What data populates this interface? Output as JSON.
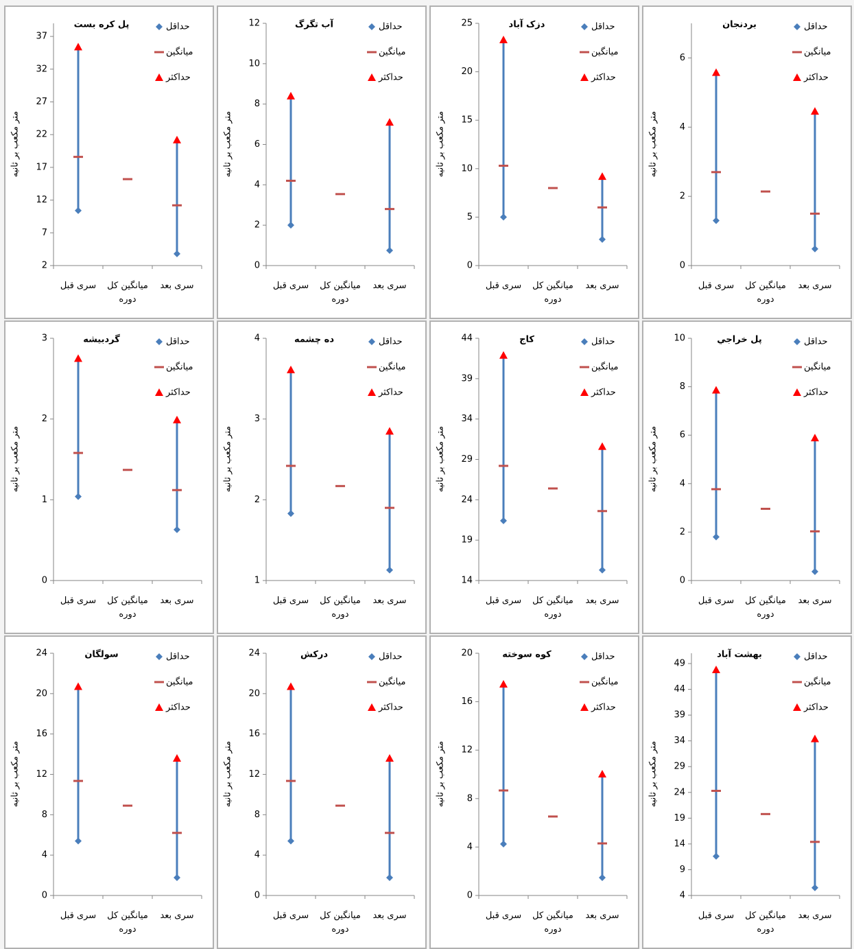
{
  "chart_data": [
    {
      "type": "high-low",
      "title": "پل کره بست",
      "ylabel": "متر مکعب بر ثانیه",
      "categories": [
        "سری قبل",
        "میانگین کل دوره",
        "سری بعد"
      ],
      "ylim": [
        2,
        39
      ],
      "yticks": [
        2,
        7,
        12,
        17,
        22,
        27,
        32,
        37
      ],
      "series": [
        {
          "name": "حداقل",
          "color": "#4a7ebb",
          "marker": "diamond",
          "values": [
            10.4,
            null,
            3.8
          ]
        },
        {
          "name": "میانگین",
          "color": "#c0504d",
          "marker": "dash",
          "values": [
            18.6,
            15.2,
            11.2
          ]
        },
        {
          "name": "حداکثر",
          "color": "#ff0000",
          "marker": "triangle",
          "values": [
            35.4,
            null,
            21.2
          ]
        }
      ]
    },
    {
      "type": "high-low",
      "title": "آب تگرگ",
      "ylabel": "متر مکعب بر ثانیه",
      "categories": [
        "سری قبل",
        "میانگین کل دوره",
        "سری بعد"
      ],
      "ylim": [
        0,
        12
      ],
      "yticks": [
        0,
        2,
        4,
        6,
        8,
        10,
        12
      ],
      "series": [
        {
          "name": "حداقل",
          "color": "#4a7ebb",
          "marker": "diamond",
          "values": [
            2.0,
            null,
            0.75
          ]
        },
        {
          "name": "میانگین",
          "color": "#c0504d",
          "marker": "dash",
          "values": [
            4.2,
            3.54,
            2.8
          ]
        },
        {
          "name": "حداکثر",
          "color": "#ff0000",
          "marker": "triangle",
          "values": [
            8.4,
            null,
            7.1
          ]
        }
      ]
    },
    {
      "type": "high-low",
      "title": "دزک آباد",
      "ylabel": "متر مکعب بر ثانیه",
      "categories": [
        "سری قبل",
        "میانگین کل دوره",
        "سری بعد"
      ],
      "ylim": [
        0,
        25
      ],
      "yticks": [
        0,
        5,
        10,
        15,
        20,
        25
      ],
      "series": [
        {
          "name": "حداقل",
          "color": "#4a7ebb",
          "marker": "diamond",
          "values": [
            5.0,
            null,
            2.7
          ]
        },
        {
          "name": "میانگین",
          "color": "#c0504d",
          "marker": "dash",
          "values": [
            10.3,
            8.0,
            6.0
          ]
        },
        {
          "name": "حداکثر",
          "color": "#ff0000",
          "marker": "triangle",
          "values": [
            23.3,
            null,
            9.2
          ]
        }
      ]
    },
    {
      "type": "high-low",
      "title": "بردنجان",
      "ylabel": "متر مکعب بر ثانیه",
      "categories": [
        "سری قبل",
        "میانگین کل دوره",
        "سری بعد"
      ],
      "ylim": [
        0,
        7
      ],
      "yticks": [
        0,
        2,
        4,
        6
      ],
      "series": [
        {
          "name": "حداقل",
          "color": "#4a7ebb",
          "marker": "diamond",
          "values": [
            1.3,
            null,
            0.48
          ]
        },
        {
          "name": "میانگین",
          "color": "#c0504d",
          "marker": "dash",
          "values": [
            2.7,
            2.14,
            1.5
          ]
        },
        {
          "name": "حداکثر",
          "color": "#ff0000",
          "marker": "triangle",
          "values": [
            5.58,
            null,
            4.46
          ]
        }
      ]
    },
    {
      "type": "high-low",
      "title": "گردبیشه",
      "ylabel": "متر مکعب بر ثانیه",
      "categories": [
        "سری قبل",
        "میانگین کل دوره",
        "سری بعد"
      ],
      "ylim": [
        0,
        3
      ],
      "yticks": [
        0,
        1,
        2,
        3
      ],
      "series": [
        {
          "name": "حداقل",
          "color": "#4a7ebb",
          "marker": "diamond",
          "values": [
            1.04,
            null,
            0.63
          ]
        },
        {
          "name": "میانگین",
          "color": "#c0504d",
          "marker": "dash",
          "values": [
            1.58,
            1.37,
            1.12
          ]
        },
        {
          "name": "حداکثر",
          "color": "#ff0000",
          "marker": "triangle",
          "values": [
            2.75,
            null,
            1.99
          ]
        }
      ]
    },
    {
      "type": "high-low",
      "title": "ده چشمه",
      "ylabel": "متر مکعب بر ثانیه",
      "categories": [
        "سری قبل",
        "میانگین کل دوره",
        "سری بعد"
      ],
      "ylim": [
        1,
        4
      ],
      "yticks": [
        1,
        2,
        3,
        4
      ],
      "series": [
        {
          "name": "حداقل",
          "color": "#4a7ebb",
          "marker": "diamond",
          "values": [
            1.83,
            null,
            1.13
          ]
        },
        {
          "name": "میانگین",
          "color": "#c0504d",
          "marker": "dash",
          "values": [
            2.42,
            2.17,
            1.9
          ]
        },
        {
          "name": "حداکثر",
          "color": "#ff0000",
          "marker": "triangle",
          "values": [
            3.61,
            null,
            2.85
          ]
        }
      ]
    },
    {
      "type": "high-low",
      "title": "کاج",
      "ylabel": "متر مکعب بر ثانیه",
      "categories": [
        "سری قبل",
        "میانگین کل دوره",
        "سری بعد"
      ],
      "ylim": [
        14,
        44
      ],
      "yticks": [
        14,
        19,
        24,
        29,
        34,
        39,
        44
      ],
      "series": [
        {
          "name": "حداقل",
          "color": "#4a7ebb",
          "marker": "diamond",
          "values": [
            21.4,
            null,
            15.3
          ]
        },
        {
          "name": "میانگین",
          "color": "#c0504d",
          "marker": "dash",
          "values": [
            28.2,
            25.4,
            22.6
          ]
        },
        {
          "name": "حداکثر",
          "color": "#ff0000",
          "marker": "triangle",
          "values": [
            41.9,
            null,
            30.6
          ]
        }
      ]
    },
    {
      "type": "high-low",
      "title": "پل خراجي",
      "ylabel": "متر مکعب بر ثانیه",
      "categories": [
        "سری قبل",
        "میانگین کل دوره",
        "سری بعد"
      ],
      "ylim": [
        0,
        10
      ],
      "yticks": [
        0,
        2,
        4,
        6,
        8,
        10
      ],
      "series": [
        {
          "name": "حداقل",
          "color": "#4a7ebb",
          "marker": "diamond",
          "values": [
            1.8,
            null,
            0.37
          ]
        },
        {
          "name": "میانگین",
          "color": "#c0504d",
          "marker": "dash",
          "values": [
            3.77,
            2.96,
            2.03
          ]
        },
        {
          "name": "حداکثر",
          "color": "#ff0000",
          "marker": "triangle",
          "values": [
            7.86,
            null,
            5.89
          ]
        }
      ]
    },
    {
      "type": "high-low",
      "title": "سولگان",
      "ylabel": "متر مکعب بر ثانیه",
      "categories": [
        "سری قبل",
        "میانگین کل دوره",
        "سری بعد"
      ],
      "ylim": [
        0,
        24
      ],
      "yticks": [
        0,
        4,
        8,
        12,
        16,
        20,
        24
      ],
      "series": [
        {
          "name": "حداقل",
          "color": "#4a7ebb",
          "marker": "diamond",
          "values": [
            5.4,
            null,
            1.77
          ]
        },
        {
          "name": "میانگین",
          "color": "#c0504d",
          "marker": "dash",
          "values": [
            11.35,
            8.9,
            6.2
          ]
        },
        {
          "name": "حداکثر",
          "color": "#ff0000",
          "marker": "triangle",
          "values": [
            20.7,
            null,
            13.6
          ]
        }
      ]
    },
    {
      "type": "high-low",
      "title": "درکش",
      "ylabel": "متر مکعب بر ثانیه",
      "categories": [
        "سری قبل",
        "میانگین کل دوره",
        "سری بعد"
      ],
      "ylim": [
        0,
        24
      ],
      "yticks": [
        0,
        4,
        8,
        12,
        16,
        20,
        24
      ],
      "series": [
        {
          "name": "حداقل",
          "color": "#4a7ebb",
          "marker": "diamond",
          "values": [
            5.4,
            null,
            1.77
          ]
        },
        {
          "name": "میانگین",
          "color": "#c0504d",
          "marker": "dash",
          "values": [
            11.35,
            8.9,
            6.2
          ]
        },
        {
          "name": "حداکثر",
          "color": "#ff0000",
          "marker": "triangle",
          "values": [
            20.7,
            null,
            13.6
          ]
        }
      ]
    },
    {
      "type": "high-low",
      "title": "کوه سوخته",
      "ylabel": "متر مکعب بر ثانیه",
      "categories": [
        "سری قبل",
        "میانگین کل دوره",
        "سری بعد"
      ],
      "ylim": [
        0,
        20
      ],
      "yticks": [
        0,
        4,
        8,
        12,
        16,
        20
      ],
      "series": [
        {
          "name": "حداقل",
          "color": "#4a7ebb",
          "marker": "diamond",
          "values": [
            4.25,
            null,
            1.47
          ]
        },
        {
          "name": "میانگین",
          "color": "#c0504d",
          "marker": "dash",
          "values": [
            8.67,
            6.52,
            4.3
          ]
        },
        {
          "name": "حداکثر",
          "color": "#ff0000",
          "marker": "triangle",
          "values": [
            17.45,
            null,
            10.03
          ]
        }
      ]
    },
    {
      "type": "high-low",
      "title": "بهشت آباد",
      "ylabel": "متر مکعب بر ثانیه",
      "categories": [
        "سری قبل",
        "میانگین کل دوره",
        "سری بعد"
      ],
      "ylim": [
        4,
        51
      ],
      "yticks": [
        4,
        9,
        14,
        19,
        24,
        29,
        34,
        39,
        44,
        49
      ],
      "series": [
        {
          "name": "حداقل",
          "color": "#4a7ebb",
          "marker": "diamond",
          "values": [
            11.6,
            null,
            5.5
          ]
        },
        {
          "name": "میانگین",
          "color": "#c0504d",
          "marker": "dash",
          "values": [
            24.3,
            19.8,
            14.4
          ]
        },
        {
          "name": "حداکثر",
          "color": "#ff0000",
          "marker": "triangle",
          "values": [
            47.8,
            null,
            34.4
          ]
        }
      ]
    }
  ]
}
